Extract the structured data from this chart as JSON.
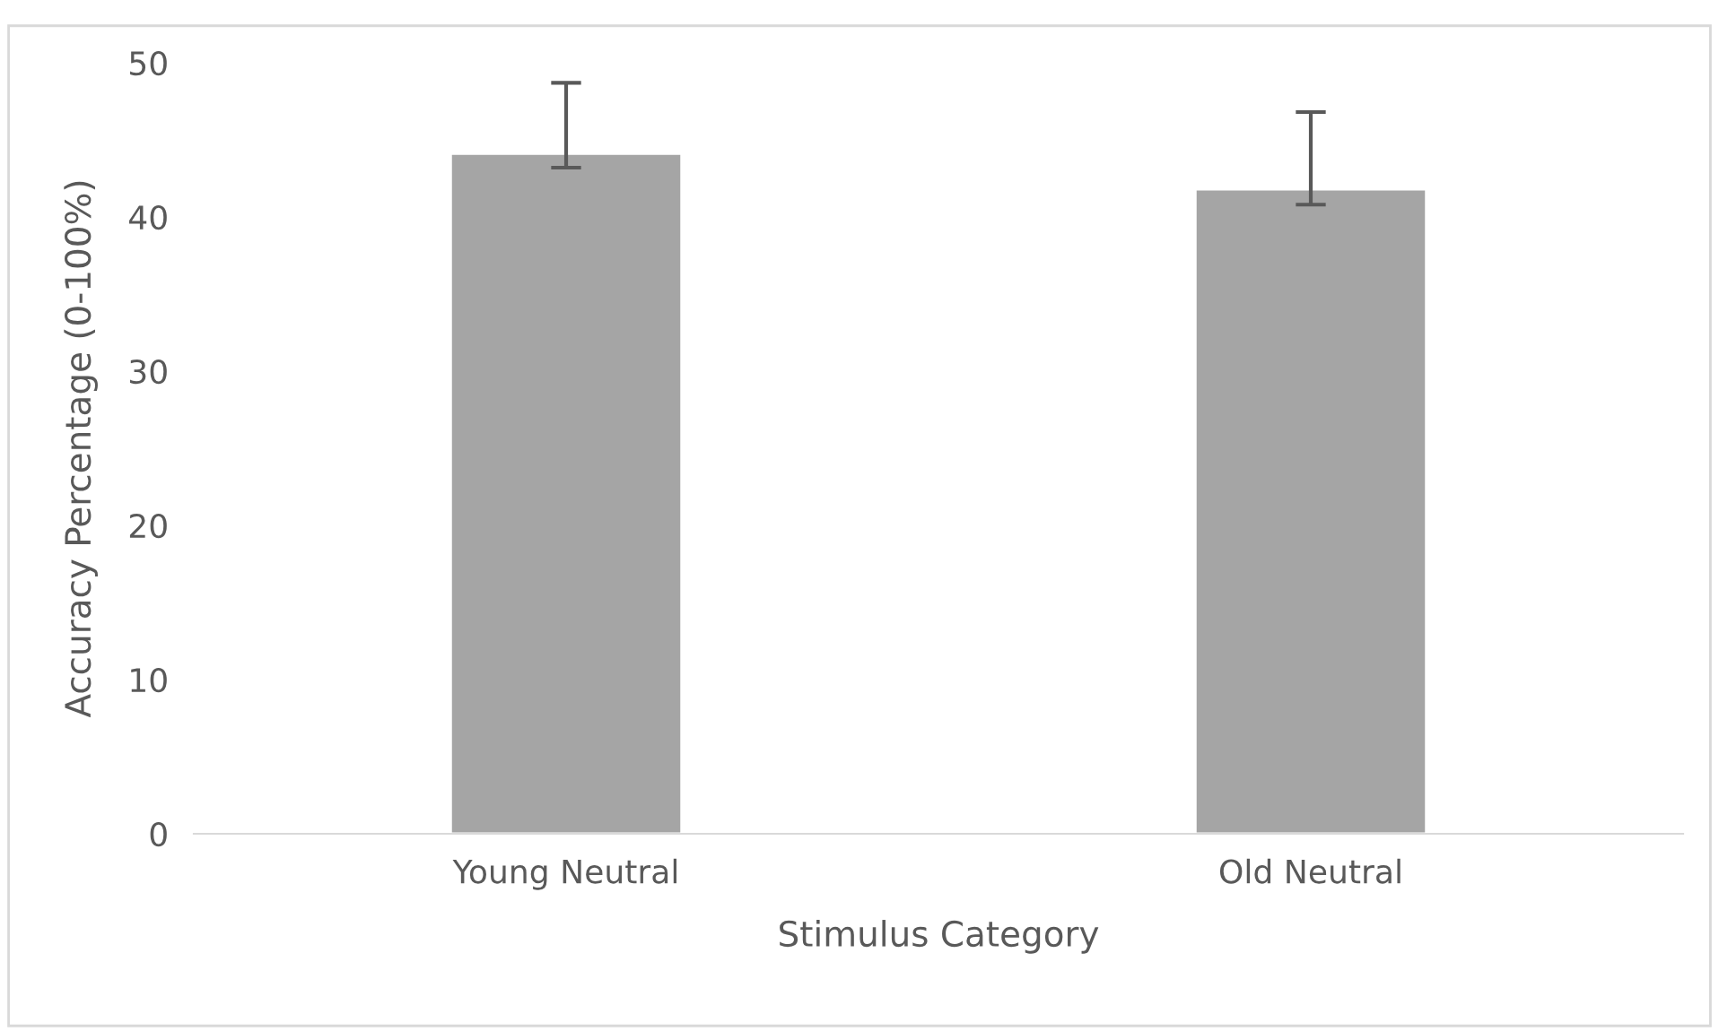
{
  "chart_data": {
    "type": "bar",
    "xlabel": "Stimulus Category",
    "ylabel": "Accuracy Percentage (0-100%)",
    "categories": [
      "Young Neutral",
      "Old Neutral"
    ],
    "values": [
      44.1,
      41.8
    ],
    "errors": [
      [
        43.2,
        48.7
      ],
      [
        40.8,
        46.8
      ]
    ],
    "color": "#a5a5a5",
    "ylim": [
      0,
      50
    ],
    "yticks": [
      0,
      10,
      20,
      30,
      40,
      50
    ],
    "grid": false
  }
}
